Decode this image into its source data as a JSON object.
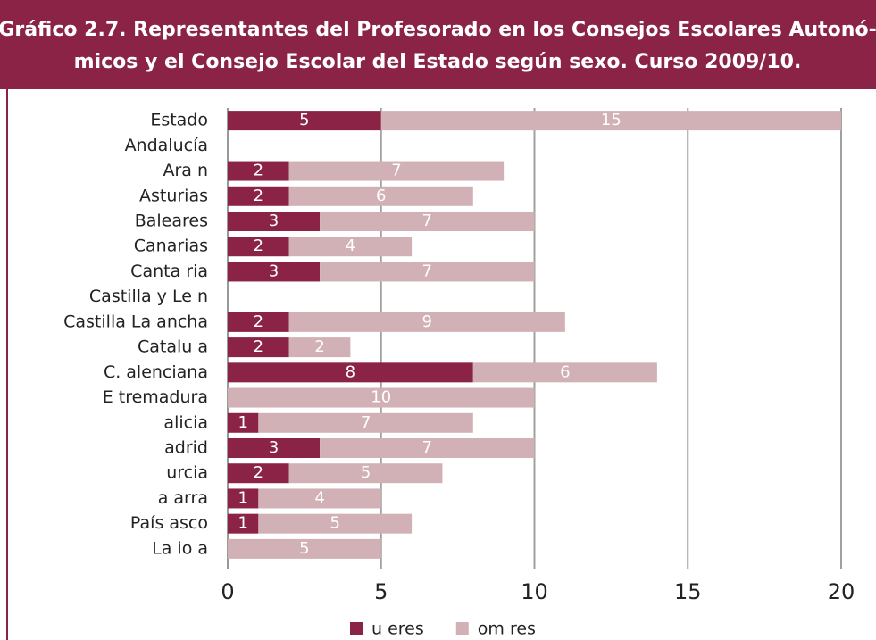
{
  "chart_data": {
    "type": "stacked_barh",
    "title": [
      "Gráfico 2.7. Representantes del Profesorado en los Consejos Escolares Autonó-",
      "micos y el Consejo Escolar del Estado según sexo. Curso 2009/10."
    ],
    "categories": [
      "Estado",
      "Andalucía",
      "Ara n",
      "Asturias",
      "Baleares",
      "Canarias",
      "Canta ria",
      "Castilla y Le n",
      "Castilla La ancha",
      "Catalu a",
      "C. alenciana",
      "E tremadura",
      "alicia",
      "adrid",
      "urcia",
      "a arra",
      "País asco",
      "La io a"
    ],
    "series": [
      {
        "name": "u eres",
        "color": "#8b2346",
        "values": [
          5,
          null,
          2,
          2,
          3,
          2,
          3,
          null,
          2,
          2,
          8,
          null,
          1,
          3,
          2,
          1,
          1,
          null
        ]
      },
      {
        "name": "om res",
        "color": "#d2b1b6",
        "values": [
          15,
          null,
          7,
          6,
          7,
          4,
          7,
          null,
          9,
          2,
          6,
          10,
          7,
          7,
          5,
          4,
          5,
          5
        ]
      }
    ],
    "xlim": [
      0,
      20
    ],
    "xticks": [
      0,
      5,
      10,
      15,
      20
    ],
    "grid": true,
    "legend": "bottom"
  }
}
